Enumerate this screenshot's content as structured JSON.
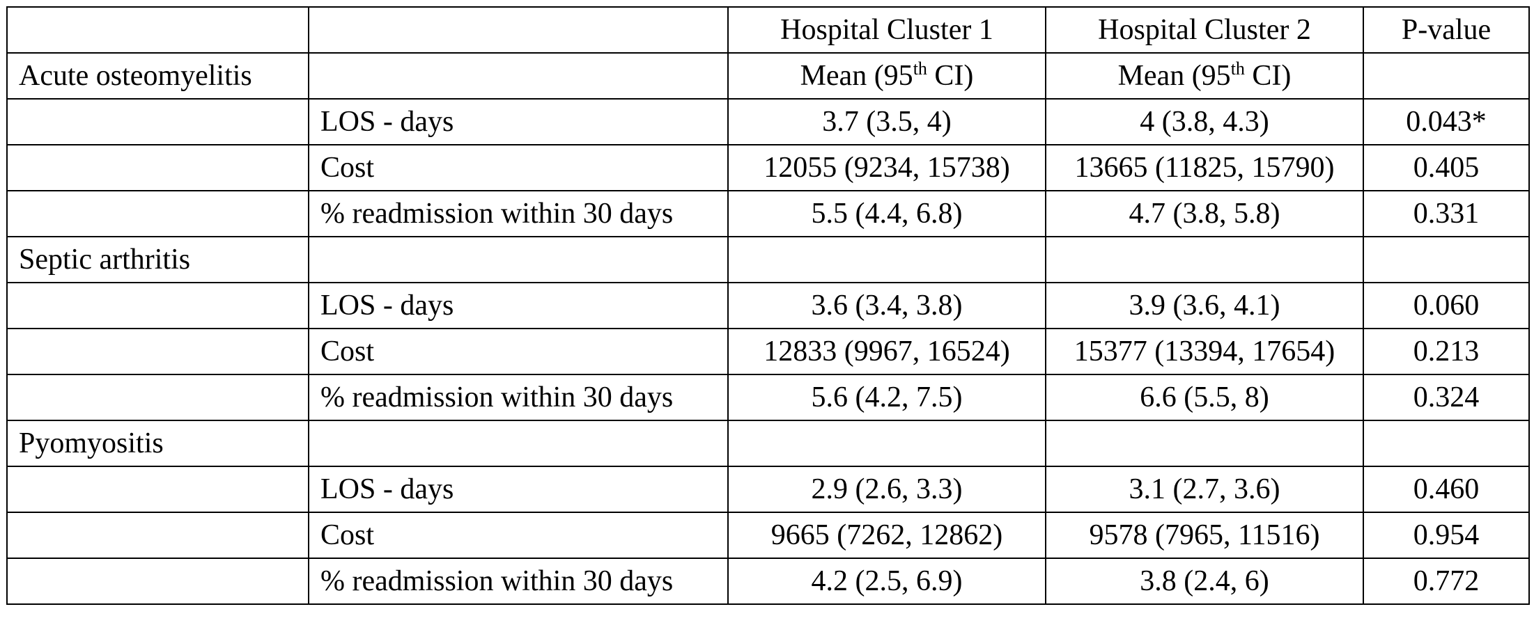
{
  "table": {
    "header": {
      "col1": "",
      "col2": "",
      "cluster1": "Hospital Cluster 1",
      "cluster2": "Hospital Cluster 2",
      "pvalue": "P-value"
    },
    "subheader": {
      "mean_prefix": "Mean (95",
      "mean_sup": "th",
      "mean_suffix": " CI)"
    },
    "groups": [
      {
        "name": "Acute osteomyelitis",
        "rows": [
          {
            "measure": "LOS - days",
            "cluster1": "3.7 (3.5, 4)",
            "cluster2": "4 (3.8, 4.3)",
            "p": "0.043*"
          },
          {
            "measure": "Cost",
            "cluster1": "12055 (9234, 15738)",
            "cluster2": "13665 (11825, 15790)",
            "p": "0.405"
          },
          {
            "measure": "% readmission within 30 days",
            "cluster1": "5.5 (4.4, 6.8)",
            "cluster2": "4.7 (3.8, 5.8)",
            "p": "0.331"
          }
        ]
      },
      {
        "name": "Septic arthritis",
        "rows": [
          {
            "measure": "LOS - days",
            "cluster1": "3.6 (3.4, 3.8)",
            "cluster2": "3.9 (3.6, 4.1)",
            "p": "0.060"
          },
          {
            "measure": "Cost",
            "cluster1": "12833 (9967, 16524)",
            "cluster2": "15377 (13394, 17654)",
            "p": "0.213"
          },
          {
            "measure": "% readmission within 30 days",
            "cluster1": "5.6 (4.2, 7.5)",
            "cluster2": "6.6 (5.5, 8)",
            "p": "0.324"
          }
        ]
      },
      {
        "name": "Pyomyositis",
        "rows": [
          {
            "measure": "LOS - days",
            "cluster1": "2.9 (2.6, 3.3)",
            "cluster2": "3.1 (2.7, 3.6)",
            "p": "0.460"
          },
          {
            "measure": "Cost",
            "cluster1": "9665 (7262, 12862)",
            "cluster2": "9578 (7965, 11516)",
            "p": "0.954"
          },
          {
            "measure": "% readmission within 30 days",
            "cluster1": "4.2 (2.5, 6.9)",
            "cluster2": "3.8 (2.4, 6)",
            "p": "0.772"
          }
        ]
      }
    ]
  }
}
